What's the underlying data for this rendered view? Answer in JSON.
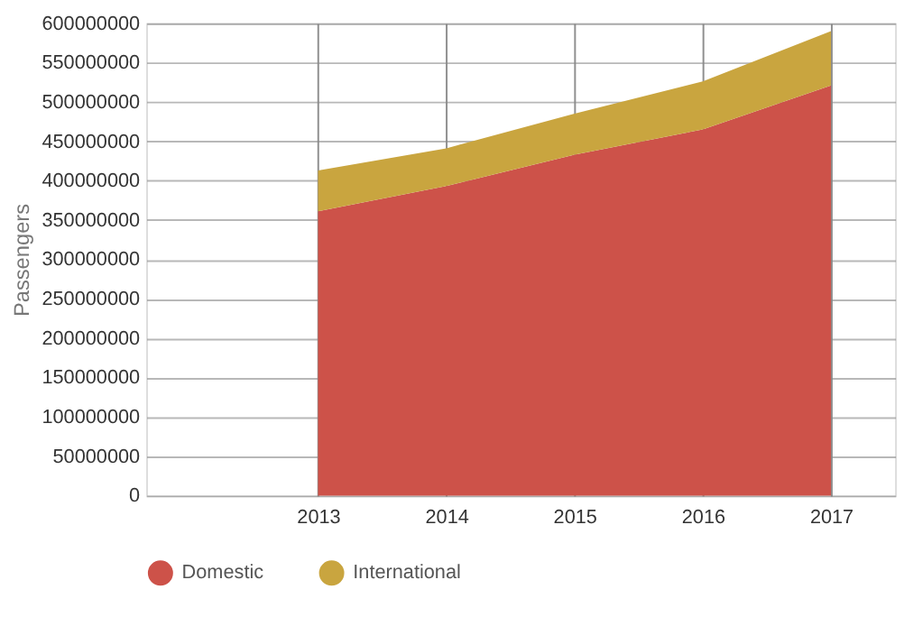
{
  "chart_data": {
    "type": "area",
    "stacked": true,
    "ylabel": "Passengers",
    "x": [
      2013,
      2014,
      2015,
      2016,
      2017
    ],
    "series": [
      {
        "name": "Domestic",
        "color": "#cd5249",
        "values": [
          361000000,
          393000000,
          433000000,
          465000000,
          521000000
        ]
      },
      {
        "name": "International",
        "color": "#c9a53f",
        "values": [
          52000000,
          48000000,
          52000000,
          61000000,
          69000000
        ]
      }
    ],
    "xlim": [
      2011.66,
      2017.5
    ],
    "xticks": [
      2013,
      2014,
      2015,
      2016,
      2017
    ],
    "ylim": [
      0,
      600000000
    ],
    "yticks": [
      0,
      50000000,
      100000000,
      150000000,
      200000000,
      250000000,
      300000000,
      350000000,
      400000000,
      450000000,
      500000000,
      550000000,
      600000000
    ],
    "grid": true,
    "legend": "bottom"
  }
}
